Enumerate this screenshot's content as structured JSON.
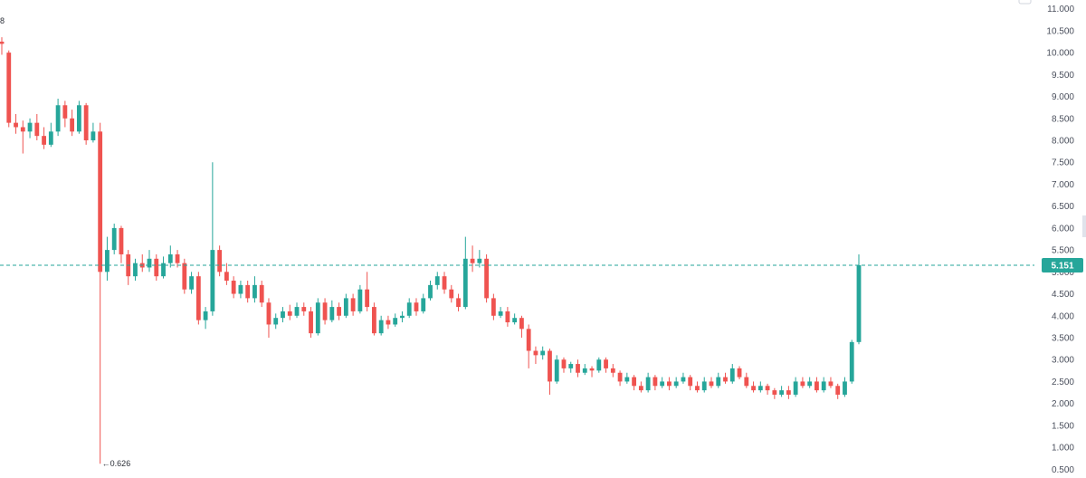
{
  "corner_text": "8",
  "chart_data": {
    "type": "candlestick",
    "yaxis": {
      "position": "right",
      "range": [
        0.3,
        11.2
      ],
      "ticks": [
        "0.500",
        "1.000",
        "1.500",
        "2.000",
        "2.500",
        "3.000",
        "3.500",
        "4.000",
        "4.500",
        "5.000",
        "5.500",
        "6.000",
        "6.500",
        "7.000",
        "7.500",
        "8.000",
        "8.500",
        "9.000",
        "9.500",
        "10.000",
        "10.500",
        "11.000"
      ],
      "tick_values": [
        0.5,
        1,
        1.5,
        2,
        2.5,
        3,
        3.5,
        4,
        4.5,
        5,
        5.5,
        6,
        6.5,
        7,
        7.5,
        8,
        8.5,
        9,
        9.5,
        10,
        10.5,
        11
      ]
    },
    "current_price": {
      "value": 5.151,
      "label": "5.151"
    },
    "min_annotation": {
      "value": 0.626,
      "label": "0.626",
      "arrow": "←"
    },
    "colors": {
      "up": "#26a69a",
      "down": "#ef5350",
      "price_line": "#26a69a",
      "price_tag": "#26a69a"
    },
    "grid": false,
    "candles": [
      [
        10.25,
        10.2,
        10.35,
        9.95
      ],
      [
        10.0,
        8.4,
        10.05,
        8.3
      ],
      [
        8.4,
        8.3,
        8.6,
        8.15
      ],
      [
        8.3,
        8.2,
        8.45,
        7.7
      ],
      [
        8.2,
        8.4,
        8.5,
        8.05
      ],
      [
        8.4,
        8.1,
        8.6,
        8.0
      ],
      [
        8.1,
        7.9,
        8.3,
        7.8
      ],
      [
        7.9,
        8.2,
        8.4,
        7.85
      ],
      [
        8.2,
        8.8,
        8.95,
        8.1
      ],
      [
        8.8,
        8.5,
        8.9,
        8.3
      ],
      [
        8.5,
        8.2,
        8.7,
        8.1
      ],
      [
        8.2,
        8.8,
        8.9,
        8.15
      ],
      [
        8.8,
        8.0,
        8.85,
        7.9
      ],
      [
        8.0,
        8.2,
        8.4,
        7.95
      ],
      [
        8.2,
        5.0,
        8.4,
        0.626
      ],
      [
        5.0,
        5.5,
        5.8,
        4.8
      ],
      [
        5.5,
        6.0,
        6.1,
        5.4
      ],
      [
        6.0,
        5.4,
        6.05,
        5.2
      ],
      [
        5.4,
        4.9,
        5.5,
        4.7
      ],
      [
        4.9,
        5.2,
        5.3,
        4.8
      ],
      [
        5.2,
        5.1,
        5.4,
        5.0
      ],
      [
        5.1,
        5.3,
        5.5,
        5.0
      ],
      [
        5.3,
        4.9,
        5.4,
        4.8
      ],
      [
        4.9,
        5.2,
        5.35,
        4.85
      ],
      [
        5.2,
        5.4,
        5.6,
        5.1
      ],
      [
        5.4,
        5.2,
        5.5,
        5.1
      ],
      [
        5.2,
        4.6,
        5.3,
        4.5
      ],
      [
        4.6,
        4.9,
        5.0,
        4.5
      ],
      [
        4.9,
        3.9,
        5.0,
        3.8
      ],
      [
        3.9,
        4.1,
        4.2,
        3.7
      ],
      [
        4.1,
        5.5,
        7.5,
        4.0
      ],
      [
        5.5,
        5.0,
        5.6,
        4.9
      ],
      [
        5.0,
        4.8,
        5.2,
        4.7
      ],
      [
        4.8,
        4.5,
        4.9,
        4.4
      ],
      [
        4.5,
        4.7,
        4.8,
        4.4
      ],
      [
        4.7,
        4.4,
        4.8,
        4.3
      ],
      [
        4.4,
        4.7,
        4.9,
        4.3
      ],
      [
        4.7,
        4.3,
        4.8,
        4.2
      ],
      [
        4.3,
        3.8,
        4.4,
        3.5
      ],
      [
        3.8,
        3.95,
        4.05,
        3.7
      ],
      [
        3.95,
        4.1,
        4.2,
        3.85
      ],
      [
        4.1,
        4.0,
        4.25,
        3.9
      ],
      [
        4.0,
        4.2,
        4.3,
        3.95
      ],
      [
        4.2,
        4.1,
        4.3,
        4.0
      ],
      [
        4.1,
        3.6,
        4.2,
        3.5
      ],
      [
        3.6,
        4.3,
        4.4,
        3.55
      ],
      [
        4.3,
        3.9,
        4.4,
        3.8
      ],
      [
        3.9,
        4.2,
        4.35,
        3.85
      ],
      [
        4.2,
        4.0,
        4.3,
        3.9
      ],
      [
        4.0,
        4.4,
        4.5,
        3.95
      ],
      [
        4.4,
        4.1,
        4.5,
        4.0
      ],
      [
        4.1,
        4.6,
        4.7,
        4.05
      ],
      [
        4.6,
        4.2,
        5.0,
        4.1
      ],
      [
        4.2,
        3.6,
        4.3,
        3.55
      ],
      [
        3.6,
        3.9,
        4.0,
        3.55
      ],
      [
        3.9,
        3.8,
        4.0,
        3.7
      ],
      [
        3.8,
        3.95,
        4.05,
        3.75
      ],
      [
        3.95,
        4.0,
        4.1,
        3.85
      ],
      [
        4.0,
        4.3,
        4.4,
        3.95
      ],
      [
        4.3,
        4.1,
        4.4,
        4.0
      ],
      [
        4.1,
        4.4,
        4.5,
        4.05
      ],
      [
        4.4,
        4.7,
        4.8,
        4.35
      ],
      [
        4.7,
        4.9,
        5.0,
        4.6
      ],
      [
        4.9,
        4.6,
        5.0,
        4.5
      ],
      [
        4.6,
        4.4,
        4.7,
        4.3
      ],
      [
        4.4,
        4.2,
        4.5,
        4.1
      ],
      [
        4.2,
        5.3,
        5.8,
        4.15
      ],
      [
        5.3,
        5.2,
        5.6,
        5.0
      ],
      [
        5.2,
        5.3,
        5.5,
        5.1
      ],
      [
        5.3,
        4.4,
        5.4,
        4.3
      ],
      [
        4.4,
        4.0,
        4.5,
        3.9
      ],
      [
        4.0,
        4.1,
        4.2,
        3.95
      ],
      [
        4.1,
        3.85,
        4.2,
        3.75
      ],
      [
        3.85,
        3.95,
        4.05,
        3.8
      ],
      [
        3.95,
        3.7,
        4.0,
        3.5
      ],
      [
        3.7,
        3.2,
        3.8,
        2.8
      ],
      [
        3.2,
        3.1,
        3.3,
        2.9
      ],
      [
        3.1,
        3.2,
        3.3,
        3.0
      ],
      [
        3.2,
        2.5,
        3.25,
        2.2
      ],
      [
        2.5,
        3.0,
        3.1,
        2.45
      ],
      [
        3.0,
        2.8,
        3.05,
        2.7
      ],
      [
        2.8,
        2.9,
        2.95,
        2.7
      ],
      [
        2.9,
        2.7,
        3.0,
        2.6
      ],
      [
        2.7,
        2.8,
        2.9,
        2.65
      ],
      [
        2.8,
        2.75,
        2.85,
        2.6
      ],
      [
        2.75,
        3.0,
        3.05,
        2.7
      ],
      [
        3.0,
        2.8,
        3.05,
        2.7
      ],
      [
        2.8,
        2.7,
        2.9,
        2.6
      ],
      [
        2.7,
        2.5,
        2.75,
        2.4
      ],
      [
        2.5,
        2.6,
        2.7,
        2.45
      ],
      [
        2.6,
        2.4,
        2.65,
        2.3
      ],
      [
        2.4,
        2.3,
        2.5,
        2.25
      ],
      [
        2.3,
        2.6,
        2.7,
        2.25
      ],
      [
        2.6,
        2.4,
        2.65,
        2.3
      ],
      [
        2.4,
        2.5,
        2.6,
        2.35
      ],
      [
        2.5,
        2.4,
        2.6,
        2.3
      ],
      [
        2.4,
        2.5,
        2.6,
        2.35
      ],
      [
        2.5,
        2.6,
        2.7,
        2.45
      ],
      [
        2.6,
        2.4,
        2.65,
        2.3
      ],
      [
        2.4,
        2.3,
        2.5,
        2.25
      ],
      [
        2.3,
        2.5,
        2.6,
        2.25
      ],
      [
        2.5,
        2.4,
        2.6,
        2.35
      ],
      [
        2.4,
        2.6,
        2.7,
        2.35
      ],
      [
        2.6,
        2.5,
        2.7,
        2.45
      ],
      [
        2.5,
        2.8,
        2.9,
        2.45
      ],
      [
        2.8,
        2.6,
        2.85,
        2.55
      ],
      [
        2.6,
        2.4,
        2.7,
        2.35
      ],
      [
        2.4,
        2.3,
        2.5,
        2.25
      ],
      [
        2.3,
        2.4,
        2.5,
        2.25
      ],
      [
        2.4,
        2.3,
        2.45,
        2.2
      ],
      [
        2.3,
        2.2,
        2.35,
        2.1
      ],
      [
        2.2,
        2.3,
        2.4,
        2.15
      ],
      [
        2.3,
        2.2,
        2.4,
        2.1
      ],
      [
        2.2,
        2.5,
        2.6,
        2.15
      ],
      [
        2.5,
        2.4,
        2.6,
        2.35
      ],
      [
        2.4,
        2.5,
        2.6,
        2.35
      ],
      [
        2.5,
        2.3,
        2.6,
        2.25
      ],
      [
        2.3,
        2.5,
        2.6,
        2.25
      ],
      [
        2.5,
        2.4,
        2.6,
        2.35
      ],
      [
        2.4,
        2.2,
        2.45,
        2.1
      ],
      [
        2.2,
        2.5,
        2.6,
        2.15
      ],
      [
        2.5,
        3.4,
        3.45,
        2.45
      ],
      [
        3.4,
        5.151,
        5.4,
        3.35
      ]
    ]
  }
}
